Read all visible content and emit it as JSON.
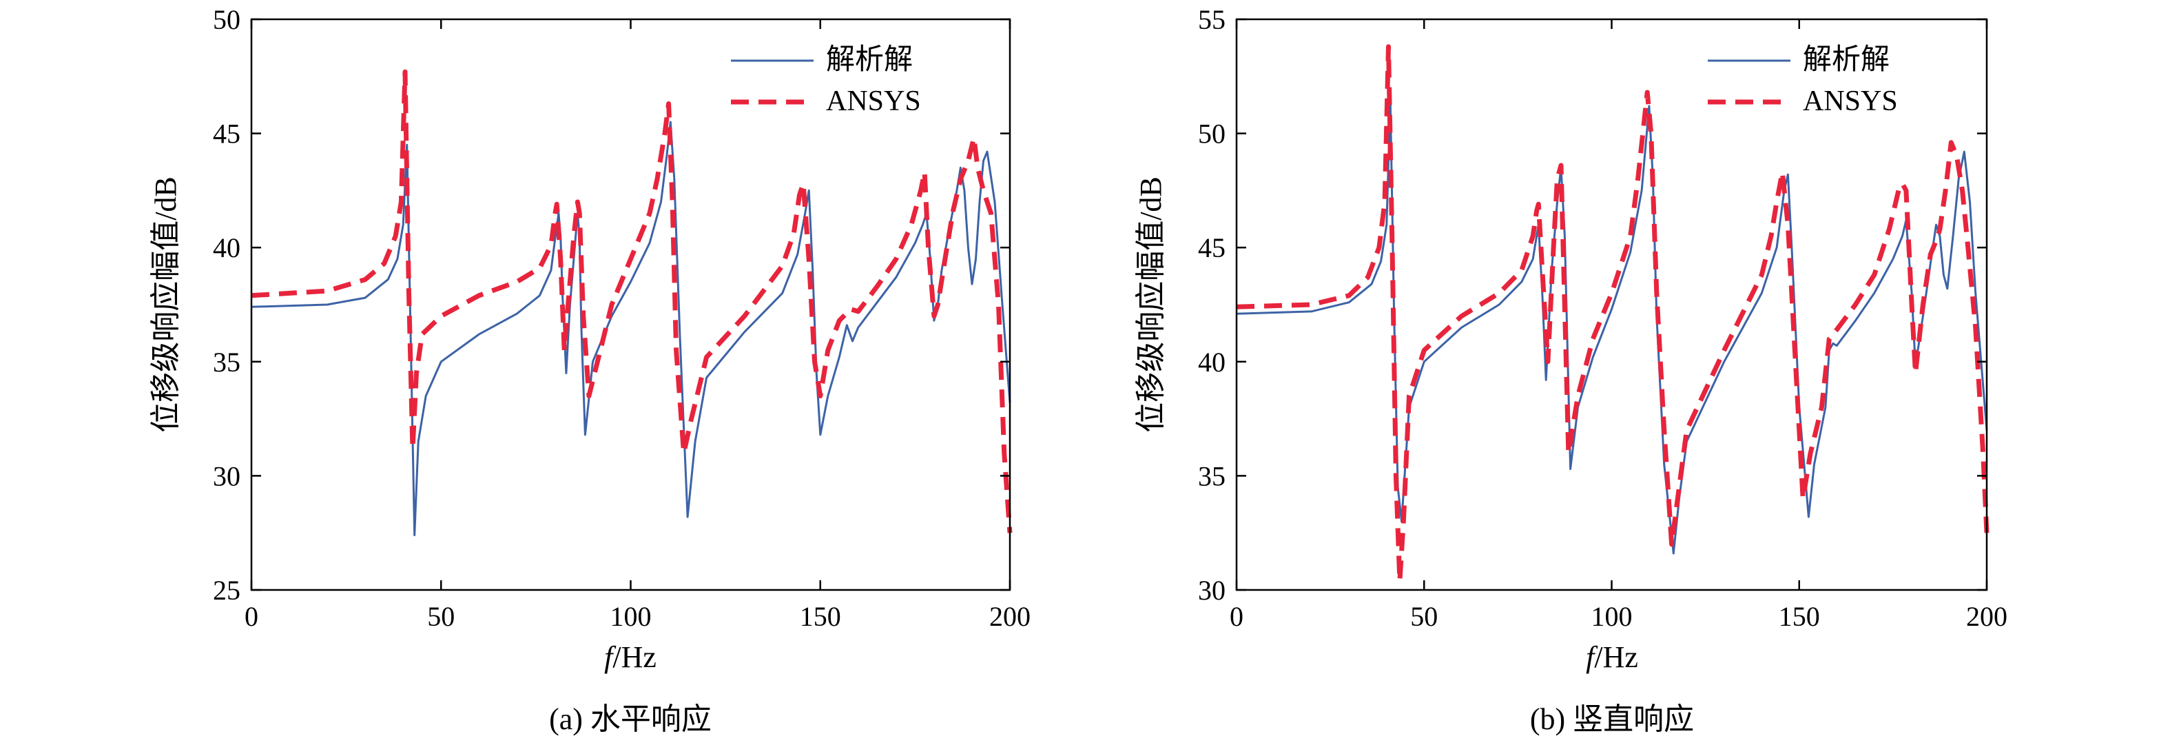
{
  "colors": {
    "analytic": "#3d63a6",
    "ansys": "#e8243c",
    "axes": "#000000"
  },
  "chart_data": [
    {
      "type": "line",
      "caption": "(a) 水平响应",
      "xlabel_italic": "f",
      "xlabel_unit": "/Hz",
      "ylabel": "位移级响应幅值/dB",
      "xlim": [
        0,
        200
      ],
      "ylim": [
        25,
        50
      ],
      "xticks": [
        "0",
        "50",
        "100",
        "150",
        "200"
      ],
      "yticks": [
        "25",
        "30",
        "35",
        "40",
        "45",
        "50"
      ],
      "legend_position": "top-right",
      "series": [
        {
          "name": "解析解",
          "style": "solid",
          "x": [
            0,
            20,
            30,
            36,
            38.5,
            40,
            41,
            42,
            43,
            44,
            46,
            50,
            60,
            70,
            76,
            79,
            80,
            81,
            81.5,
            82,
            83,
            84,
            85,
            86,
            86.5,
            87,
            88,
            90,
            95,
            100,
            105,
            108,
            109.5,
            110.5,
            111.5,
            113,
            115,
            117,
            120,
            130,
            140,
            144,
            146,
            147,
            148,
            149,
            150,
            152,
            155,
            157,
            158.5,
            160,
            165,
            170,
            175,
            177,
            178,
            179,
            180,
            181,
            182,
            184,
            186,
            187,
            188,
            189,
            190,
            191,
            192,
            193,
            194,
            196,
            198,
            200
          ],
          "values": [
            37.4,
            37.5,
            37.8,
            38.6,
            39.5,
            41,
            44.5,
            36,
            27.4,
            31.5,
            33.5,
            35,
            36.2,
            37.1,
            37.9,
            39,
            40.3,
            41.5,
            40.5,
            38,
            34.5,
            37.5,
            39.5,
            41.5,
            40.5,
            36.5,
            31.8,
            35,
            37,
            38.5,
            40.2,
            42,
            44,
            45.5,
            43,
            36,
            28.2,
            31.5,
            34.3,
            36.3,
            38,
            39.7,
            41.5,
            42.5,
            39,
            34.5,
            31.8,
            33.5,
            35.2,
            36.6,
            35.9,
            36.5,
            37.6,
            38.7,
            40.2,
            41,
            41.5,
            39.5,
            36.8,
            37.5,
            39,
            40.8,
            42.5,
            43.5,
            42.5,
            40,
            38.4,
            39.5,
            42,
            43.8,
            44.2,
            42,
            37.5,
            33.2
          ]
        },
        {
          "name": "ANSYS",
          "style": "dashed",
          "x": [
            0,
            20,
            30,
            35,
            38,
            39.5,
            40.5,
            41.5,
            42.5,
            43.5,
            45,
            50,
            60,
            70,
            76,
            79,
            80,
            80.5,
            81.5,
            82.5,
            84,
            85,
            86,
            86.5,
            87.5,
            89,
            95,
            100,
            105,
            107,
            109,
            110,
            111,
            112,
            114,
            116,
            120,
            130,
            140,
            143,
            144.5,
            145.5,
            147,
            148.5,
            150,
            152,
            155,
            158,
            160,
            165,
            170,
            174,
            176.5,
            177.5,
            178.5,
            180,
            181,
            183,
            185,
            187,
            189,
            190.5,
            191.5,
            193,
            195,
            197,
            198.5,
            200
          ],
          "values": [
            37.9,
            38.1,
            38.6,
            39.3,
            40.5,
            42,
            47.7,
            38,
            31.2,
            34.5,
            36.2,
            37,
            37.9,
            38.5,
            39.1,
            40.1,
            41.4,
            41.9,
            39.5,
            35.5,
            38.5,
            40.5,
            42,
            41.5,
            37,
            33.5,
            37.5,
            39.5,
            41.5,
            43,
            45,
            46.3,
            42,
            35.5,
            31,
            32.5,
            35.2,
            37,
            39.2,
            40.6,
            42.3,
            42.8,
            39.5,
            35,
            33.5,
            35.5,
            36.8,
            37.3,
            37.2,
            38.3,
            39.5,
            41,
            42.5,
            43.3,
            40,
            37,
            37.5,
            39.6,
            41.6,
            43,
            43.8,
            44.8,
            43.5,
            42.5,
            41.5,
            37.5,
            31,
            27.5
          ]
        }
      ]
    },
    {
      "type": "line",
      "caption": "(b) 竖直响应",
      "xlabel_italic": "f",
      "xlabel_unit": "/Hz",
      "ylabel": "位移级响应幅值/dB",
      "xlim": [
        0,
        200
      ],
      "ylim": [
        30,
        55
      ],
      "xticks": [
        "0",
        "50",
        "100",
        "150",
        "200"
      ],
      "yticks": [
        "30",
        "35",
        "40",
        "45",
        "50",
        "55"
      ],
      "legend_position": "top-right",
      "series": [
        {
          "name": "解析解",
          "style": "solid",
          "x": [
            0,
            20,
            30,
            36,
            38.5,
            40,
            41,
            42,
            43,
            44,
            46,
            50,
            60,
            70,
            76,
            79,
            80,
            80.5,
            81.5,
            82.5,
            84,
            85.5,
            86.5,
            87.5,
            89,
            91,
            95,
            100,
            105,
            108,
            110,
            111,
            112,
            114,
            116.5,
            118,
            120,
            130,
            140,
            144,
            146,
            147,
            148,
            150,
            152.5,
            154,
            157,
            158,
            159,
            160,
            165,
            170,
            175,
            177.5,
            178.5,
            180,
            181,
            183,
            185,
            186.5,
            187.5,
            188.5,
            189.5,
            191,
            192.5,
            194,
            195.5,
            197,
            200
          ],
          "values": [
            42.1,
            42.2,
            42.6,
            43.4,
            44.4,
            46,
            51.5,
            42,
            34.5,
            33,
            38,
            40,
            41.5,
            42.5,
            43.5,
            44.5,
            45.5,
            46,
            43,
            39.2,
            44,
            47,
            48.5,
            45.5,
            35.3,
            38,
            40.2,
            42.3,
            44.8,
            47.5,
            51.2,
            48,
            42,
            35.5,
            31.6,
            34,
            36.5,
            40,
            43,
            45,
            47.5,
            48.2,
            45,
            38,
            33.2,
            35.5,
            38,
            40.5,
            40.8,
            40.7,
            41.8,
            43,
            44.5,
            45.5,
            46.2,
            43,
            39.8,
            42,
            44.3,
            46,
            45.5,
            43.8,
            43.2,
            45.5,
            48,
            49.2,
            47,
            43,
            37
          ]
        },
        {
          "name": "ANSYS",
          "style": "dashed",
          "x": [
            0,
            20,
            30,
            35,
            38,
            39.5,
            40.5,
            41.5,
            42.5,
            43.5,
            44.5,
            46,
            50,
            60,
            70,
            76,
            79,
            80,
            80.5,
            81.5,
            83,
            84.5,
            85.5,
            86.5,
            88.5,
            91,
            95,
            100,
            105,
            107,
            109.5,
            110.5,
            112,
            114,
            116,
            118,
            120,
            130,
            140,
            142.5,
            144,
            145.5,
            147,
            149,
            151,
            153,
            156,
            158,
            160,
            165,
            170,
            174,
            176.5,
            177.5,
            178.5,
            180,
            181,
            183,
            185,
            186.5,
            187.5,
            189,
            190.5,
            192,
            193.5,
            195,
            197,
            199,
            200
          ],
          "values": [
            42.4,
            42.5,
            42.9,
            43.7,
            45,
            47,
            53.8,
            45,
            35,
            30.4,
            33,
            38.5,
            40.5,
            42,
            43,
            44,
            45.5,
            46.6,
            46.9,
            44,
            40,
            45,
            48,
            48.6,
            36,
            38.5,
            41,
            43,
            45.5,
            48,
            51.8,
            50,
            43,
            37,
            32,
            34.5,
            37,
            40.5,
            43.8,
            45.5,
            47,
            48.3,
            46,
            40,
            34,
            36,
            38,
            41,
            41.4,
            42.5,
            43.8,
            45.8,
            47.5,
            47.8,
            47.5,
            42.5,
            39.5,
            42.5,
            44.7,
            45.3,
            45.8,
            47.5,
            49.6,
            49,
            47.5,
            45,
            41.5,
            36,
            32.5
          ]
        }
      ]
    }
  ]
}
